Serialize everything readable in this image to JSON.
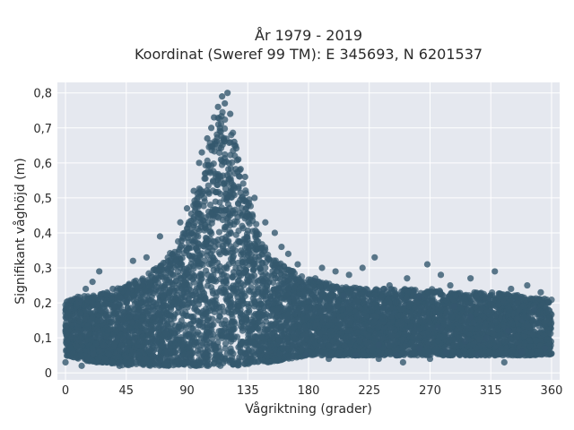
{
  "chart_data": {
    "type": "scatter",
    "title_line1": "År 1979 - 2019",
    "title_line2": "Koordinat (Sweref 99 TM): E 345693, N 6201537",
    "xlabel": "Vågriktning (grader)",
    "ylabel": "Signifikant våghöjd (m)",
    "xlim": [
      -6,
      366
    ],
    "ylim": [
      -0.02,
      0.83
    ],
    "x_ticks": [
      0,
      45,
      90,
      135,
      180,
      225,
      270,
      315,
      360
    ],
    "x_tick_labels": [
      "0",
      "45",
      "90",
      "135",
      "180",
      "225",
      "270",
      "315",
      "360"
    ],
    "y_ticks": [
      0,
      0.1,
      0.2,
      0.3,
      0.4,
      0.5,
      0.6,
      0.7,
      0.8
    ],
    "y_tick_labels": [
      "0",
      "0,1",
      "0,2",
      "0,3",
      "0,4",
      "0,5",
      "0,6",
      "0,7",
      "0,8"
    ],
    "grid": true,
    "colors": {
      "marker": "#34586e",
      "plot_background": "#e5e8ef",
      "grid": "#ffffff"
    },
    "envelope": {
      "x": [
        0,
        10,
        20,
        30,
        45,
        60,
        75,
        90,
        100,
        105,
        110,
        115,
        120,
        125,
        130,
        140,
        150,
        165,
        180,
        200,
        225,
        250,
        270,
        290,
        315,
        340,
        360
      ],
      "upper": [
        0.21,
        0.22,
        0.22,
        0.23,
        0.25,
        0.28,
        0.33,
        0.42,
        0.55,
        0.62,
        0.72,
        0.75,
        0.74,
        0.68,
        0.58,
        0.45,
        0.34,
        0.3,
        0.27,
        0.25,
        0.24,
        0.24,
        0.24,
        0.23,
        0.23,
        0.22,
        0.21
      ],
      "lower": [
        0.05,
        0.04,
        0.03,
        0.03,
        0.02,
        0.02,
        0.02,
        0.02,
        0.02,
        0.02,
        0.02,
        0.02,
        0.02,
        0.02,
        0.02,
        0.03,
        0.03,
        0.04,
        0.05,
        0.05,
        0.05,
        0.05,
        0.05,
        0.05,
        0.05,
        0.05,
        0.05
      ]
    },
    "points": [
      [
        120,
        0.8
      ],
      [
        116,
        0.79
      ],
      [
        118,
        0.77
      ],
      [
        113,
        0.76
      ],
      [
        122,
        0.74
      ],
      [
        110,
        0.73
      ],
      [
        108,
        0.7
      ],
      [
        125,
        0.66
      ],
      [
        105,
        0.67
      ],
      [
        101,
        0.63
      ],
      [
        99,
        0.6
      ],
      [
        128,
        0.61
      ],
      [
        95,
        0.52
      ],
      [
        90,
        0.47
      ],
      [
        133,
        0.56
      ],
      [
        140,
        0.5
      ],
      [
        85,
        0.43
      ],
      [
        148,
        0.43
      ],
      [
        155,
        0.4
      ],
      [
        70,
        0.39
      ],
      [
        160,
        0.36
      ],
      [
        60,
        0.33
      ],
      [
        165,
        0.34
      ],
      [
        172,
        0.31
      ],
      [
        185,
        0.27
      ],
      [
        190,
        0.3
      ],
      [
        200,
        0.29
      ],
      [
        210,
        0.28
      ],
      [
        220,
        0.3
      ],
      [
        229,
        0.33
      ],
      [
        240,
        0.25
      ],
      [
        253,
        0.27
      ],
      [
        268,
        0.31
      ],
      [
        278,
        0.28
      ],
      [
        285,
        0.25
      ],
      [
        300,
        0.27
      ],
      [
        318,
        0.29
      ],
      [
        330,
        0.24
      ],
      [
        342,
        0.25
      ],
      [
        352,
        0.23
      ],
      [
        0,
        0.03
      ],
      [
        12,
        0.02
      ],
      [
        25,
        0.29
      ],
      [
        35,
        0.24
      ],
      [
        50,
        0.32
      ],
      [
        40,
        0.02
      ],
      [
        15,
        0.24
      ],
      [
        20,
        0.26
      ],
      [
        232,
        0.04
      ],
      [
        250,
        0.03
      ],
      [
        262,
        0.07
      ],
      [
        282,
        0.06
      ],
      [
        305,
        0.05
      ],
      [
        312,
        0.1
      ],
      [
        325,
        0.03
      ],
      [
        338,
        0.06
      ],
      [
        355,
        0.07
      ],
      [
        270,
        0.04
      ],
      [
        245,
        0.05
      ],
      [
        195,
        0.04
      ],
      [
        215,
        0.05
      ],
      [
        178,
        0.05
      ],
      [
        296,
        0.09
      ],
      [
        328,
        0.12
      ],
      [
        347,
        0.18
      ],
      [
        236,
        0.24
      ],
      [
        288,
        0.19
      ],
      [
        262,
        0.22
      ],
      [
        206,
        0.22
      ],
      [
        300,
        0.16
      ],
      [
        232,
        0.08
      ],
      [
        276,
        0.13
      ]
    ]
  }
}
